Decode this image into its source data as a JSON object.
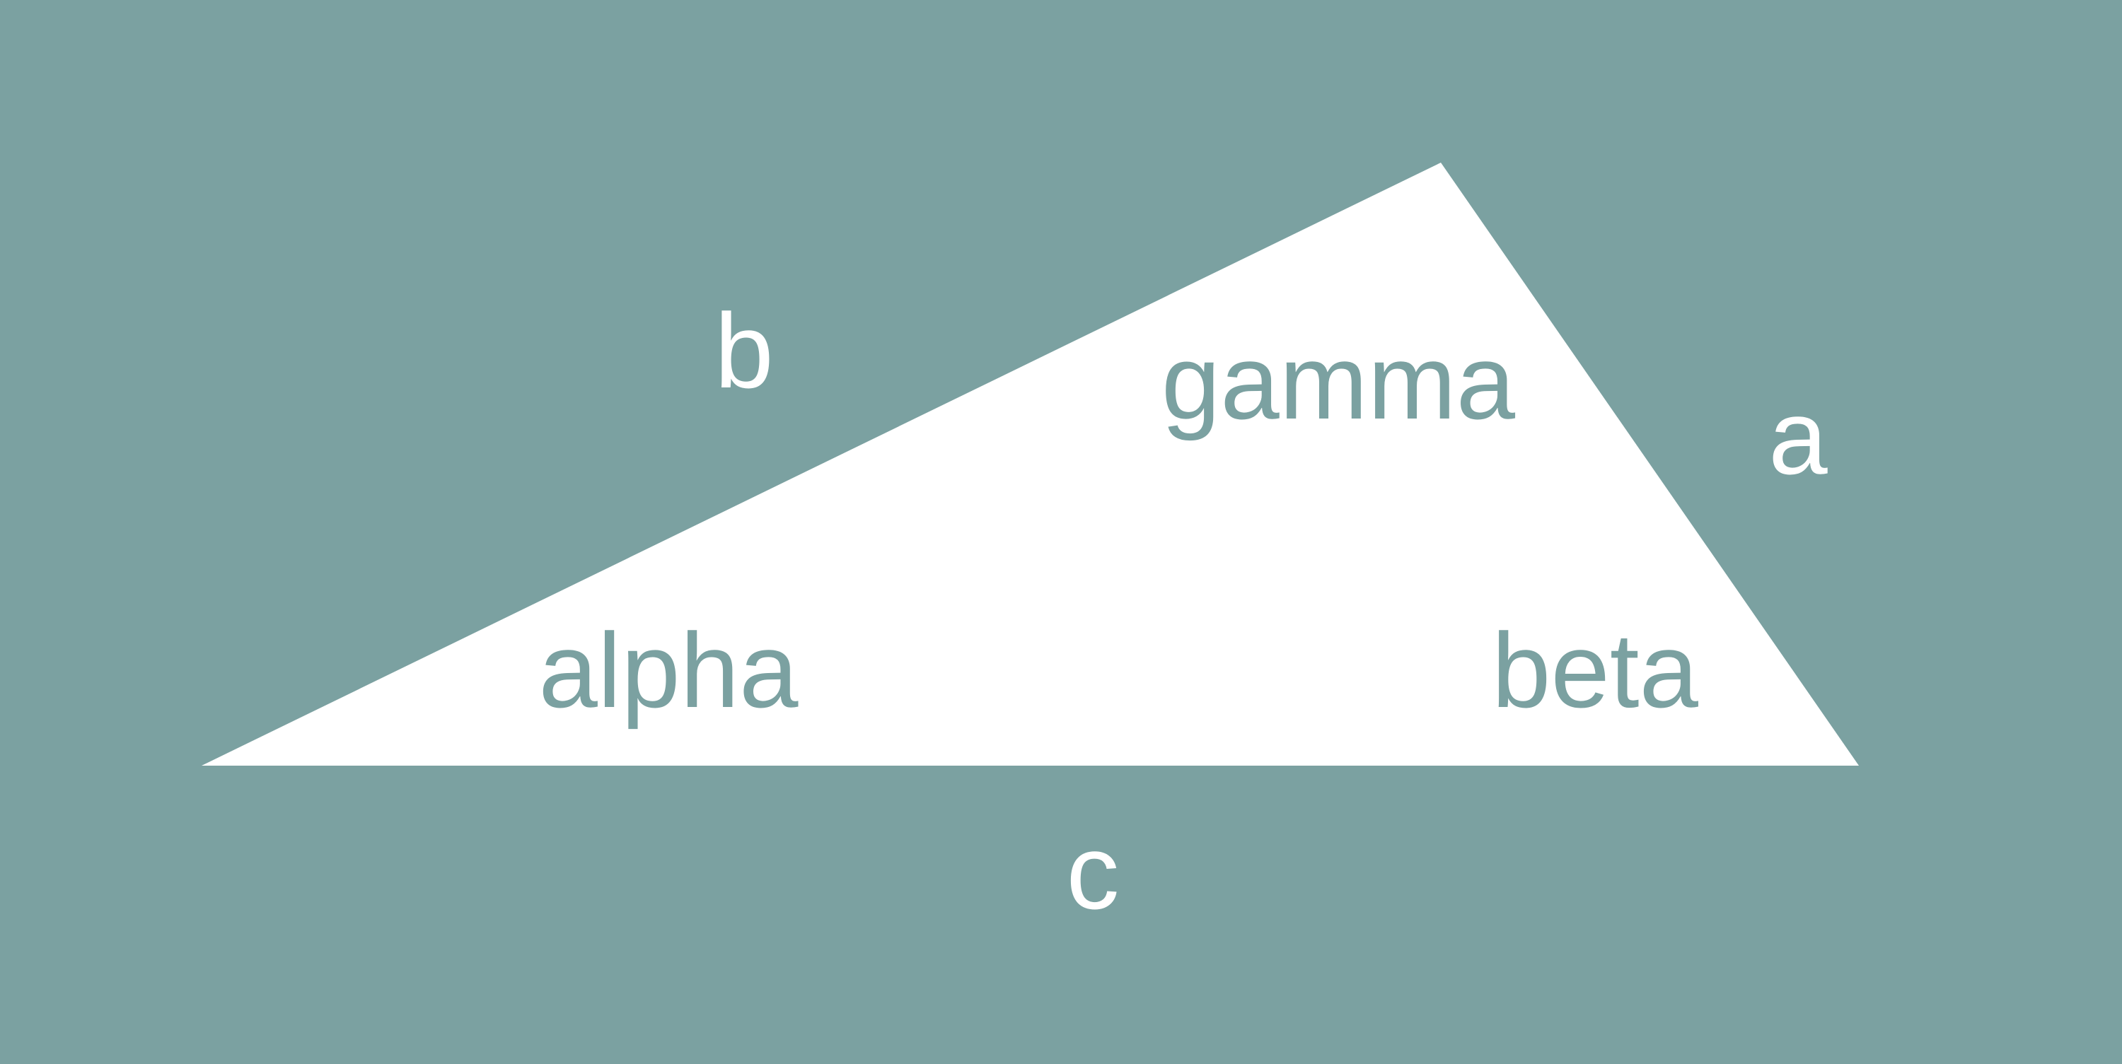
{
  "colors": {
    "background": "#7ba1a1",
    "triangle_fill": "#ffffff",
    "side_label_color": "#ffffff",
    "angle_label_color": "#7ba1a1"
  },
  "sides": {
    "a": "a",
    "b": "b",
    "c": "c"
  },
  "angles": {
    "alpha": "alpha",
    "beta": "beta",
    "gamma": "gamma"
  }
}
